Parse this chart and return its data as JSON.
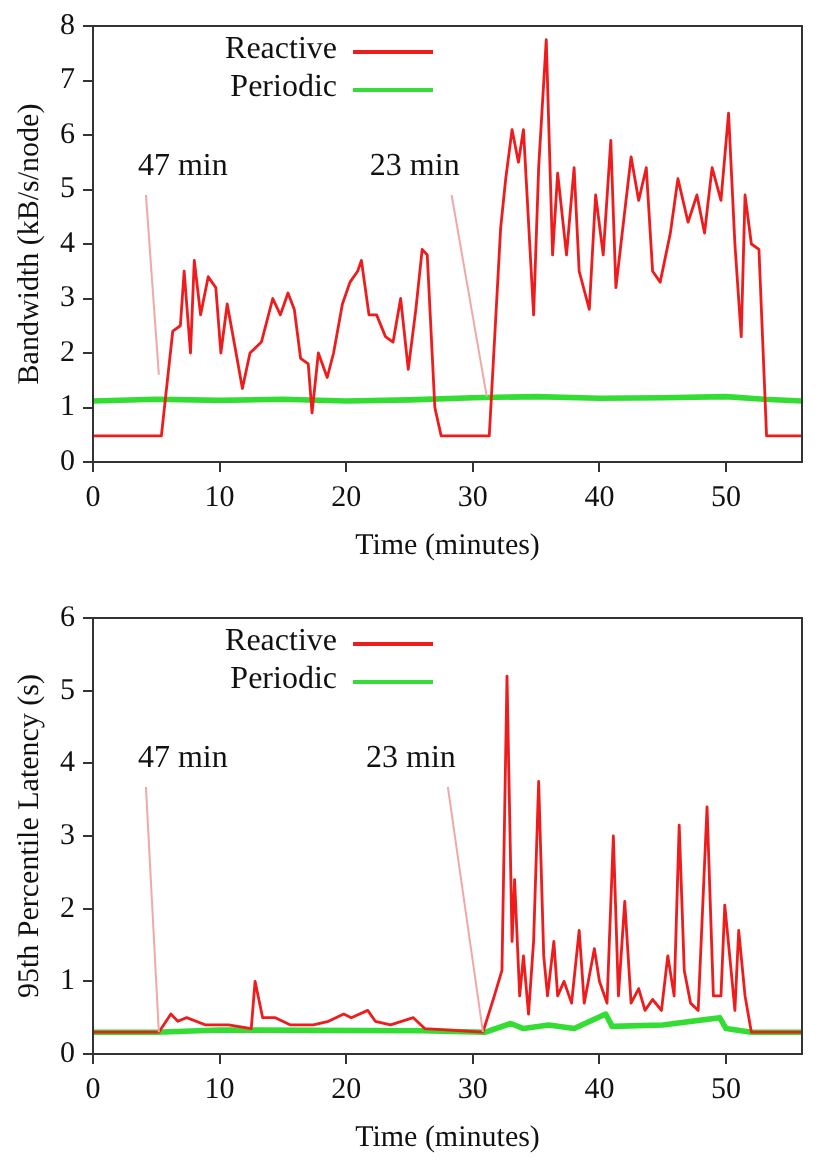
{
  "chart_data": [
    {
      "type": "line",
      "xlabel": "Time (minutes)",
      "ylabel": "Bandwidth (kB/s/node)",
      "xlim": [
        0,
        56
      ],
      "xticks": [
        0,
        10,
        20,
        30,
        40,
        50
      ],
      "ylim": [
        0,
        8
      ],
      "yticks": [
        0,
        1,
        2,
        3,
        4,
        5,
        6,
        7,
        8
      ],
      "grid": false,
      "legend": "top left",
      "marker": "none",
      "line_style": "solid",
      "annotations": [
        {
          "text": "47 min",
          "x": 5.2,
          "y": 1.6
        },
        {
          "text": "23 min",
          "x": 31.1,
          "y": 1.2
        }
      ],
      "series": [
        {
          "name": "Reactive",
          "color": "#ee1c1c",
          "x": [
            0,
            5.4,
            6.3,
            6.9,
            7.2,
            7.7,
            8.0,
            8.5,
            9.1,
            9.7,
            10.1,
            10.6,
            11.3,
            11.8,
            12.4,
            13.3,
            14.2,
            14.8,
            15.4,
            15.9,
            16.4,
            17.0,
            17.3,
            17.8,
            18.5,
            19.0,
            19.7,
            20.3,
            20.9,
            21.2,
            21.8,
            22.4,
            23.1,
            23.7,
            24.3,
            24.9,
            25.5,
            26.0,
            26.4,
            27.0,
            27.5,
            31.3,
            32.2,
            32.6,
            33.1,
            33.6,
            34.0,
            34.4,
            34.8,
            35.2,
            35.8,
            36.3,
            36.7,
            37.4,
            38.0,
            38.4,
            39.2,
            39.7,
            40.3,
            40.9,
            41.3,
            41.9,
            42.5,
            43.1,
            43.7,
            44.2,
            44.8,
            45.6,
            46.2,
            47.0,
            47.7,
            48.3,
            48.9,
            49.6,
            50.2,
            50.7,
            51.2,
            51.5,
            52.0,
            52.6,
            53.2,
            56
          ],
          "values": [
            0.48,
            0.48,
            2.4,
            2.5,
            3.5,
            2.0,
            3.7,
            2.7,
            3.4,
            3.2,
            2.0,
            2.9,
            2.0,
            1.35,
            2.0,
            2.2,
            3.0,
            2.7,
            3.1,
            2.8,
            1.9,
            1.8,
            0.9,
            2.0,
            1.55,
            2.0,
            2.9,
            3.3,
            3.5,
            3.7,
            2.7,
            2.7,
            2.3,
            2.2,
            3.0,
            1.7,
            2.8,
            3.9,
            3.8,
            1.0,
            0.48,
            0.48,
            4.3,
            5.2,
            6.1,
            5.5,
            6.1,
            4.4,
            2.7,
            5.4,
            7.75,
            3.8,
            5.3,
            3.8,
            5.4,
            3.5,
            2.8,
            4.9,
            3.8,
            5.9,
            3.2,
            4.4,
            5.6,
            4.8,
            5.4,
            3.5,
            3.3,
            4.2,
            5.2,
            4.4,
            4.9,
            4.2,
            5.4,
            4.8,
            6.4,
            4.0,
            2.3,
            4.9,
            4.0,
            3.9,
            0.48,
            0.48
          ]
        },
        {
          "name": "Periodic",
          "color": "#33dd33",
          "x": [
            0,
            5,
            10,
            15,
            20,
            25,
            30,
            35,
            40,
            45,
            50,
            53,
            56
          ],
          "values": [
            1.12,
            1.15,
            1.13,
            1.15,
            1.12,
            1.14,
            1.18,
            1.2,
            1.17,
            1.18,
            1.2,
            1.15,
            1.12
          ]
        }
      ]
    },
    {
      "type": "line",
      "xlabel": "Time (minutes)",
      "ylabel": "95th Percentile Latency (s)",
      "xlim": [
        0,
        56
      ],
      "xticks": [
        0,
        10,
        20,
        30,
        40,
        50
      ],
      "ylim": [
        0,
        6
      ],
      "yticks": [
        0,
        1,
        2,
        3,
        4,
        5,
        6
      ],
      "grid": false,
      "legend": "top left",
      "marker": "none",
      "line_style": "solid",
      "annotations": [
        {
          "text": "47 min",
          "x": 5.2,
          "y": 0.3
        },
        {
          "text": "23 min",
          "x": 30.8,
          "y": 0.3
        }
      ],
      "series": [
        {
          "name": "Reactive",
          "color": "#ee1c1c",
          "x": [
            0,
            5.2,
            6.15,
            6.7,
            7.4,
            8.9,
            10.7,
            12.5,
            12.8,
            13.4,
            14.4,
            15.6,
            17.4,
            18.6,
            19.8,
            20.4,
            21.7,
            22.3,
            23.5,
            25.3,
            26.2,
            30.8,
            31.7,
            32.3,
            32.7,
            33.1,
            33.3,
            33.7,
            34.0,
            34.4,
            34.8,
            35.2,
            35.6,
            35.9,
            36.4,
            36.7,
            37.2,
            37.8,
            38.4,
            38.8,
            39.6,
            40.0,
            40.6,
            41.1,
            41.5,
            42.0,
            42.5,
            43.1,
            43.6,
            44.2,
            44.9,
            45.4,
            45.9,
            46.3,
            46.7,
            47.2,
            47.8,
            48.5,
            49.0,
            49.6,
            49.9,
            50.4,
            50.7,
            51.0,
            51.5,
            52.0,
            56
          ],
          "values": [
            0.3,
            0.3,
            0.55,
            0.45,
            0.5,
            0.4,
            0.4,
            0.35,
            1.0,
            0.5,
            0.5,
            0.4,
            0.4,
            0.45,
            0.55,
            0.5,
            0.6,
            0.45,
            0.4,
            0.5,
            0.35,
            0.3,
            0.8,
            1.15,
            5.2,
            1.55,
            2.4,
            0.8,
            1.35,
            0.55,
            1.55,
            3.75,
            1.35,
            0.8,
            1.55,
            0.8,
            1.0,
            0.7,
            1.7,
            0.7,
            1.45,
            1.0,
            0.7,
            3.0,
            0.8,
            2.1,
            0.7,
            0.9,
            0.6,
            0.75,
            0.6,
            1.35,
            0.8,
            3.15,
            1.15,
            0.7,
            0.6,
            3.4,
            0.8,
            0.8,
            2.05,
            1.15,
            0.6,
            1.7,
            0.8,
            0.3,
            0.3
          ]
        },
        {
          "name": "Periodic",
          "color": "#33dd33",
          "x": [
            0,
            5,
            10,
            26,
            31,
            33,
            34,
            36,
            38,
            40.5,
            41,
            45,
            49.5,
            50,
            52,
            56
          ],
          "values": [
            0.3,
            0.3,
            0.33,
            0.32,
            0.3,
            0.42,
            0.35,
            0.4,
            0.35,
            0.55,
            0.38,
            0.4,
            0.5,
            0.35,
            0.3,
            0.3
          ]
        }
      ]
    }
  ]
}
